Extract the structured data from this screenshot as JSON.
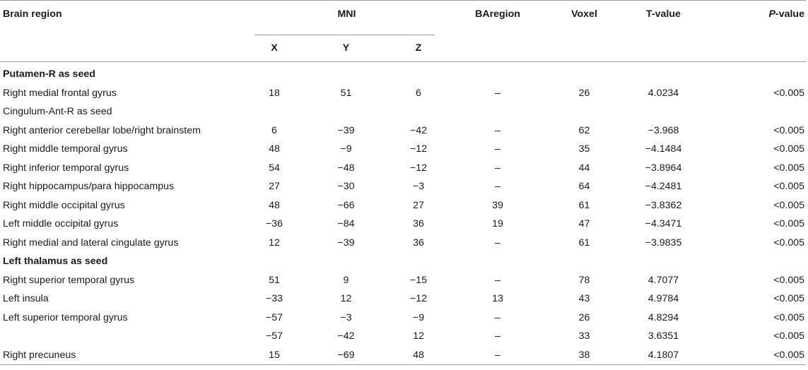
{
  "table": {
    "headers": {
      "brain_region": "Brain region",
      "mni": "MNI",
      "x": "X",
      "y": "Y",
      "z": "Z",
      "baregion": "BAregion",
      "voxel": "Voxel",
      "tvalue": "T-value",
      "pvalue_prefix": "P",
      "pvalue_suffix": "-value"
    },
    "rows": [
      {
        "kind": "section",
        "name": "Putamen-R as seed"
      },
      {
        "kind": "data",
        "name": "Right medial frontal gyrus",
        "x": "18",
        "y": "51",
        "z": "6",
        "ba": "–",
        "voxel": "26",
        "t": "4.0234",
        "p": "<0.005"
      },
      {
        "kind": "label",
        "name": "Cingulum-Ant-R as seed"
      },
      {
        "kind": "data",
        "name": "Right anterior cerebellar lobe/right brainstem",
        "x": "6",
        "y": "−39",
        "z": "−42",
        "ba": "–",
        "voxel": "62",
        "t": "−3.968",
        "p": "<0.005"
      },
      {
        "kind": "data",
        "name": "Right middle temporal gyrus",
        "x": "48",
        "y": "−9",
        "z": "−12",
        "ba": "–",
        "voxel": "35",
        "t": "−4.1484",
        "p": "<0.005"
      },
      {
        "kind": "data",
        "name": "Right inferior temporal gyrus",
        "x": "54",
        "y": "−48",
        "z": "−12",
        "ba": "–",
        "voxel": "44",
        "t": "−3.8964",
        "p": "<0.005"
      },
      {
        "kind": "data",
        "name": "Right hippocampus/para hippocampus",
        "x": "27",
        "y": "−30",
        "z": "−3",
        "ba": "–",
        "voxel": "64",
        "t": "−4.2481",
        "p": "<0.005"
      },
      {
        "kind": "data",
        "name": "Right middle occipital gyrus",
        "x": "48",
        "y": "−66",
        "z": "27",
        "ba": "39",
        "voxel": "61",
        "t": "−3.8362",
        "p": "<0.005"
      },
      {
        "kind": "data",
        "name": "Left middle occipital gyrus",
        "x": "−36",
        "y": "−84",
        "z": "36",
        "ba": "19",
        "voxel": "47",
        "t": "−4.3471",
        "p": "<0.005"
      },
      {
        "kind": "data",
        "name": "Right medial and lateral cingulate gyrus",
        "x": "12",
        "y": "−39",
        "z": "36",
        "ba": "–",
        "voxel": "61",
        "t": "−3.9835",
        "p": "<0.005"
      },
      {
        "kind": "section",
        "name": "Left thalamus as seed"
      },
      {
        "kind": "data",
        "name": "Right superior temporal gyrus",
        "x": "51",
        "y": "9",
        "z": "−15",
        "ba": "–",
        "voxel": "78",
        "t": "4.7077",
        "p": "<0.005"
      },
      {
        "kind": "data",
        "name": "Left insula",
        "x": "−33",
        "y": "12",
        "z": "−12",
        "ba": "13",
        "voxel": "43",
        "t": "4.9784",
        "p": "<0.005"
      },
      {
        "kind": "data",
        "name": "Left superior temporal gyrus",
        "x": "−57",
        "y": "−3",
        "z": "−9",
        "ba": "–",
        "voxel": "26",
        "t": "4.8294",
        "p": "<0.005"
      },
      {
        "kind": "data",
        "name": "",
        "x": "−57",
        "y": "−42",
        "z": "12",
        "ba": "–",
        "voxel": "33",
        "t": "3.6351",
        "p": "<0.005"
      },
      {
        "kind": "data",
        "name": "Right precuneus",
        "x": "15",
        "y": "−69",
        "z": "48",
        "ba": "–",
        "voxel": "38",
        "t": "4.1807",
        "p": "<0.005"
      }
    ]
  }
}
